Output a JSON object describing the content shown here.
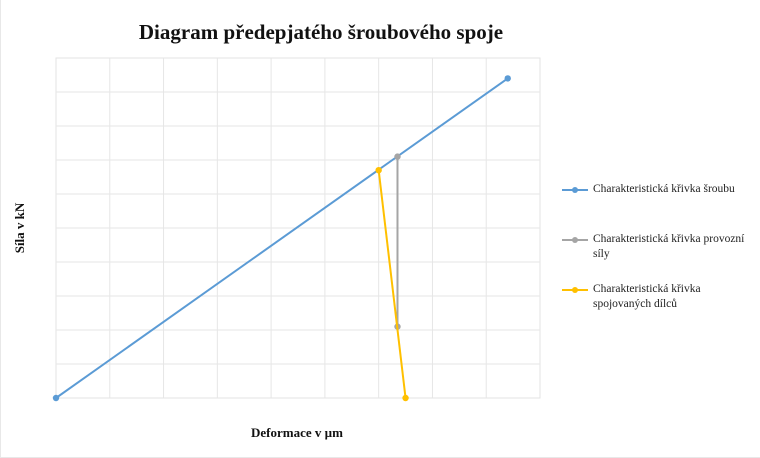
{
  "chart_data": {
    "type": "line",
    "title": "Diagram předepjatého šroubového spoje",
    "xlabel": "Deformace v µm",
    "ylabel": "Síla v kN",
    "xlim": [
      0,
      9
    ],
    "ylim": [
      0,
      10
    ],
    "grid": true,
    "legend_position": "right",
    "series": [
      {
        "name": "Charakteristická křivka šroubu",
        "color": "#5b9bd5",
        "points": [
          [
            0,
            0
          ],
          [
            8.4,
            9.4
          ]
        ]
      },
      {
        "name": "Charakteristická křivka provozní síly",
        "color": "#a5a5a5",
        "points": [
          [
            6.35,
            7.1
          ],
          [
            6.35,
            2.1
          ]
        ]
      },
      {
        "name": "Charakteristická křivka spojovaných dílců",
        "color": "#ffc000",
        "points": [
          [
            6.0,
            6.7
          ],
          [
            6.5,
            0
          ]
        ]
      }
    ]
  }
}
